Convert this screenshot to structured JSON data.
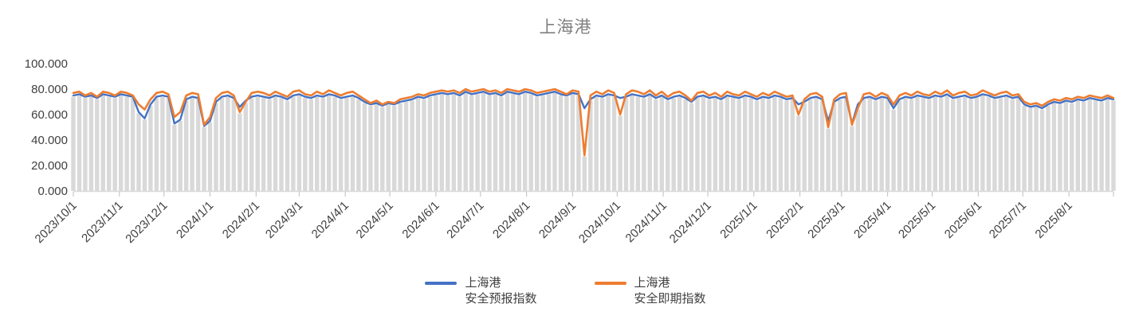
{
  "title": "上海港",
  "colors": {
    "series_forecast": "#4472C4",
    "series_spot": "#ED7D31",
    "background_columns": "#D9D9D9",
    "axis_line": "#D9D9D9",
    "tick_mark": "#BFBFBF",
    "title_text": "#808080",
    "axis_text": "#404040"
  },
  "legend": [
    {
      "line1": "上海港",
      "line2": "安全预报指数",
      "color": "#4472C4"
    },
    {
      "line1": "上海港",
      "line2": "安全即期指数",
      "color": "#ED7D31"
    }
  ],
  "chart_data": {
    "type": "line",
    "title": "上海港",
    "xlabel": "",
    "ylabel": "",
    "ylim": [
      0,
      100
    ],
    "grid": false,
    "legend_position": "bottom",
    "y_tick_labels": [
      "0.000",
      "20.000",
      "40.000",
      "60.000",
      "80.000",
      "100.000"
    ],
    "x_start_date": "2023/10/1",
    "x_step_days": 4,
    "x_total_days": 700,
    "x_tick_labels": [
      "2023/10/1",
      "2023/11/1",
      "2023/12/1",
      "2024/1/1",
      "2024/2/1",
      "2024/3/1",
      "2024/4/1",
      "2024/5/1",
      "2024/6/1",
      "2024/7/1",
      "2024/8/1",
      "2024/9/1",
      "2024/10/1",
      "2024/11/1",
      "2024/12/1",
      "2025/1/1",
      "2025/2/1",
      "2025/3/1",
      "2025/4/1",
      "2025/5/1",
      "2025/6/1",
      "2025/7/1",
      "2025/8/1"
    ],
    "x_tick_day_offsets": [
      0,
      31,
      61,
      92,
      123,
      152,
      183,
      213,
      244,
      274,
      305,
      336,
      366,
      397,
      427,
      458,
      489,
      517,
      548,
      578,
      609,
      639,
      670
    ],
    "background_columns": {
      "color": "#D9D9D9",
      "note": "thin light-gray columns behind the lines, one per data point, tops hugging the underside of the line band",
      "derived_from": "min_of_series_minus_1"
    },
    "series": [
      {
        "name": "上海港安全预报指数",
        "color": "#4472C4",
        "values": [
          75,
          76,
          74,
          75,
          73,
          76,
          75,
          74,
          76,
          75,
          74,
          62,
          57,
          68,
          74,
          75,
          74,
          53,
          56,
          72,
          74,
          73,
          51,
          55,
          70,
          74,
          75,
          73,
          66,
          71,
          74,
          75,
          74,
          73,
          75,
          74,
          72,
          75,
          76,
          74,
          73,
          75,
          74,
          76,
          75,
          73,
          74,
          75,
          73,
          70,
          68,
          69,
          67,
          69,
          68,
          70,
          71,
          72,
          74,
          73,
          75,
          76,
          77,
          76,
          77,
          75,
          78,
          76,
          77,
          78,
          76,
          77,
          75,
          78,
          77,
          76,
          78,
          77,
          75,
          76,
          77,
          78,
          76,
          75,
          77,
          76,
          65,
          72,
          75,
          74,
          76,
          75,
          73,
          74,
          76,
          75,
          74,
          76,
          73,
          75,
          72,
          74,
          75,
          73,
          70,
          74,
          75,
          73,
          74,
          72,
          75,
          74,
          73,
          75,
          74,
          72,
          74,
          73,
          75,
          74,
          72,
          73,
          68,
          70,
          73,
          74,
          72,
          55,
          70,
          73,
          74,
          53,
          68,
          73,
          74,
          72,
          74,
          73,
          65,
          72,
          74,
          73,
          75,
          74,
          73,
          75,
          74,
          76,
          73,
          74,
          75,
          73,
          74,
          76,
          75,
          73,
          74,
          75,
          73,
          74,
          68,
          66,
          67,
          65,
          68,
          70,
          69,
          71,
          70,
          72,
          71,
          73,
          72,
          71,
          73,
          72
        ]
      },
      {
        "name": "上海港安全即期指数",
        "color": "#ED7D31",
        "values": [
          77,
          78,
          75,
          77,
          74,
          78,
          77,
          75,
          78,
          77,
          75,
          68,
          64,
          72,
          77,
          78,
          76,
          58,
          62,
          75,
          77,
          76,
          52,
          58,
          73,
          77,
          78,
          75,
          62,
          70,
          77,
          78,
          77,
          75,
          78,
          76,
          74,
          78,
          79,
          76,
          75,
          78,
          76,
          79,
          77,
          75,
          77,
          78,
          75,
          72,
          69,
          71,
          68,
          70,
          69,
          72,
          73,
          74,
          76,
          75,
          77,
          78,
          79,
          78,
          79,
          77,
          80,
          78,
          79,
          80,
          78,
          79,
          77,
          80,
          79,
          78,
          80,
          79,
          77,
          78,
          79,
          80,
          78,
          76,
          79,
          78,
          28,
          75,
          78,
          76,
          79,
          77,
          60,
          76,
          79,
          78,
          76,
          79,
          75,
          78,
          74,
          77,
          78,
          75,
          71,
          77,
          78,
          75,
          77,
          74,
          78,
          76,
          75,
          78,
          76,
          74,
          77,
          75,
          78,
          76,
          74,
          75,
          60,
          72,
          76,
          77,
          74,
          50,
          72,
          76,
          77,
          52,
          65,
          76,
          77,
          74,
          77,
          75,
          68,
          75,
          77,
          75,
          78,
          76,
          75,
          78,
          76,
          79,
          75,
          77,
          78,
          75,
          76,
          79,
          77,
          75,
          77,
          78,
          75,
          76,
          70,
          68,
          69,
          67,
          70,
          72,
          71,
          73,
          72,
          74,
          73,
          75,
          74,
          73,
          75,
          73
        ]
      }
    ]
  }
}
